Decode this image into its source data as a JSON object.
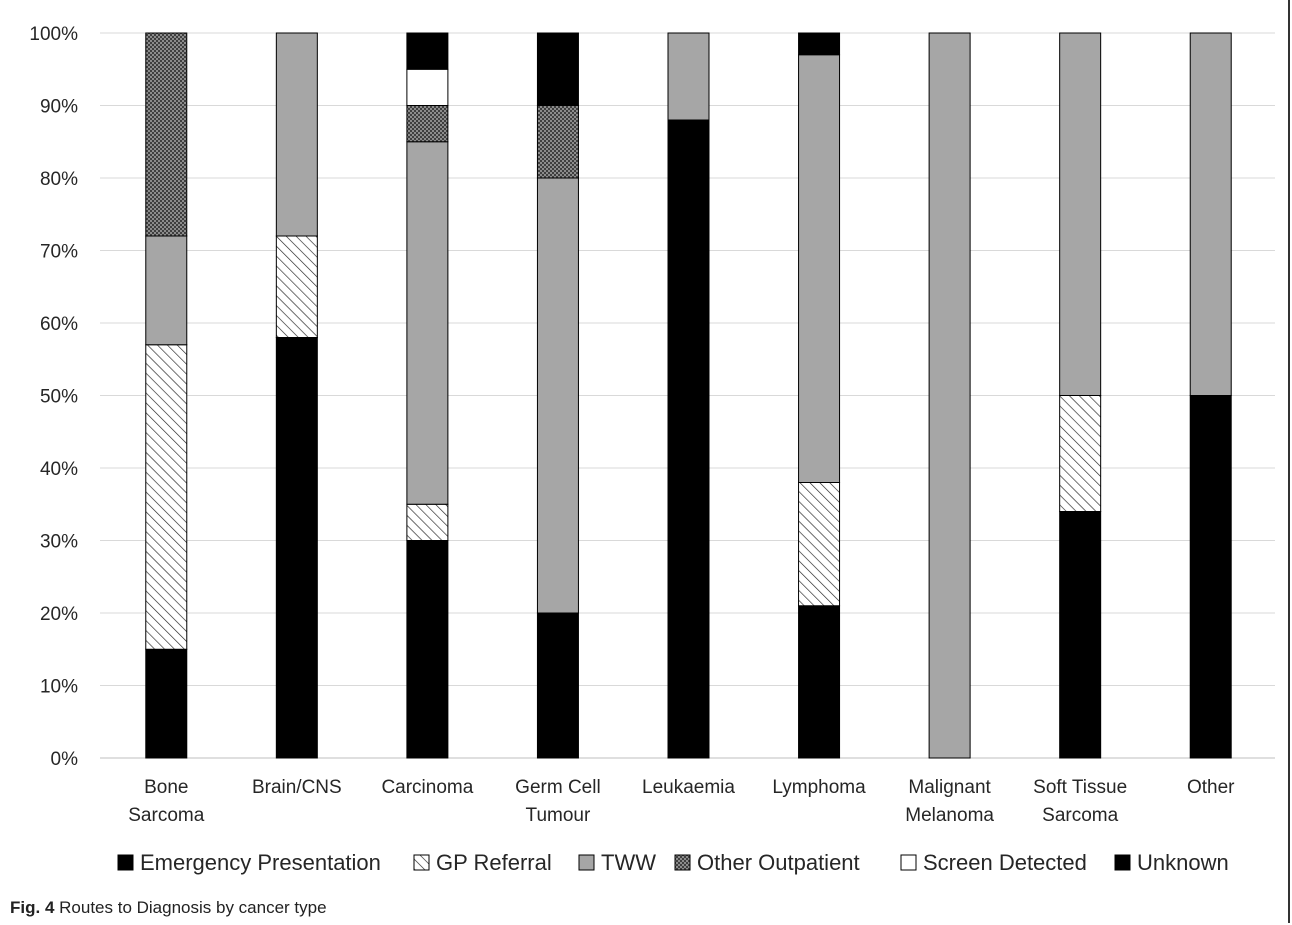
{
  "caption": {
    "label": "Fig. 4",
    "text": "Routes to Diagnosis by cancer type"
  },
  "chart_data": {
    "type": "bar",
    "stacked": true,
    "categories": [
      [
        "Bone",
        "Sarcoma"
      ],
      [
        "Brain/CNS"
      ],
      [
        "Carcinoma"
      ],
      [
        "Germ Cell",
        "Tumour"
      ],
      [
        "Leukaemia"
      ],
      [
        "Lymphoma"
      ],
      [
        "Malignant",
        "Melanoma"
      ],
      [
        "Soft Tissue",
        "Sarcoma"
      ],
      [
        "Other"
      ]
    ],
    "series": [
      {
        "name": "Emergency Presentation",
        "fill": "solid-black",
        "values": [
          15,
          58,
          30,
          20,
          88,
          21,
          0,
          34,
          50
        ]
      },
      {
        "name": "GP Referral",
        "fill": "hatch",
        "values": [
          42,
          14,
          5,
          0,
          0,
          17,
          0,
          16,
          0
        ]
      },
      {
        "name": "TWW",
        "fill": "solid-gray",
        "values": [
          15,
          28,
          50,
          60,
          12,
          59,
          100,
          50,
          50
        ]
      },
      {
        "name": "Other Outpatient",
        "fill": "crosshatch-dark",
        "values": [
          28,
          0,
          5,
          10,
          0,
          0,
          0,
          0,
          0
        ]
      },
      {
        "name": "Screen Detected",
        "fill": "white",
        "values": [
          0,
          0,
          5,
          0,
          0,
          0,
          0,
          0,
          0
        ]
      },
      {
        "name": "Unknown",
        "fill": "solid-black",
        "values": [
          0,
          0,
          5,
          10,
          0,
          3,
          0,
          0,
          0
        ]
      }
    ],
    "ylim": [
      0,
      100
    ],
    "yticks": [
      "0%",
      "10%",
      "20%",
      "30%",
      "40%",
      "50%",
      "60%",
      "70%",
      "80%",
      "90%",
      "100%"
    ],
    "grid": true,
    "legend_position": "bottom",
    "colors": {
      "black": "#000000",
      "gray": "#a6a6a6",
      "dark": "#555555",
      "grid": "#d9d9d9",
      "axis": "#bfbfbf",
      "text": "#262626"
    }
  }
}
